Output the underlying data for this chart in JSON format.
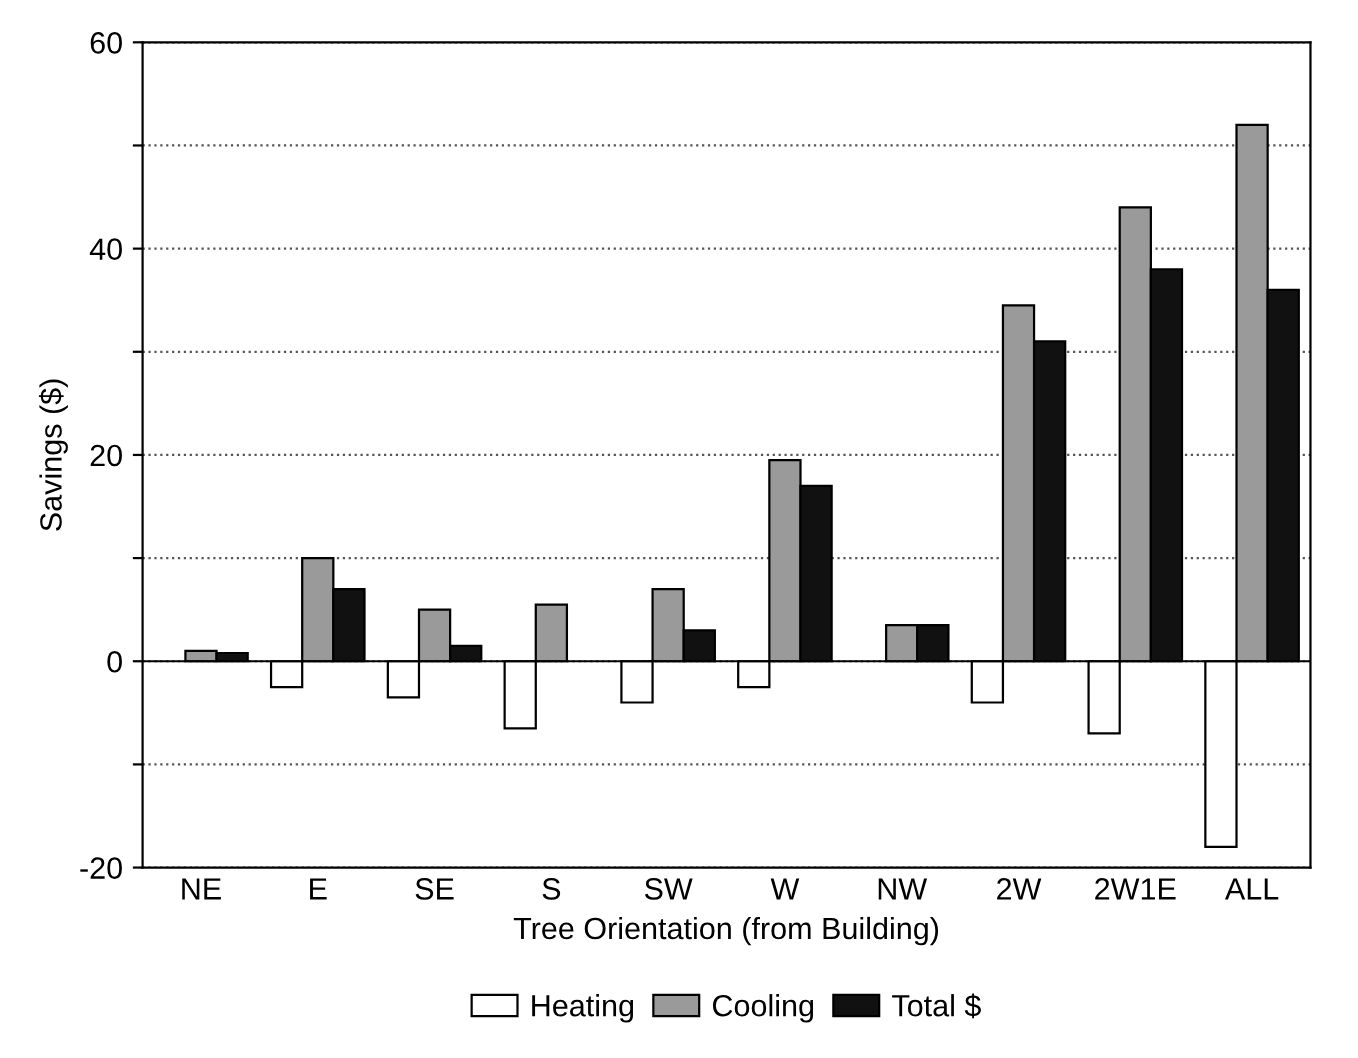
{
  "chart_data": {
    "type": "bar",
    "xlabel": "Tree Orientation (from Building)",
    "ylabel": "Savings ($)",
    "categories": [
      "NE",
      "E",
      "SE",
      "S",
      "SW",
      "W",
      "NW",
      "2W",
      "2W1E",
      "ALL"
    ],
    "series": [
      {
        "name": "Heating",
        "color": "#ffffff",
        "values": [
          null,
          -2.5,
          -3.5,
          -6.5,
          -4,
          -2.5,
          null,
          -4,
          -7,
          -18
        ]
      },
      {
        "name": "Cooling",
        "color": "#9a9a9a",
        "values": [
          1,
          10,
          5,
          5.5,
          7,
          19.5,
          3.5,
          34.5,
          44,
          52
        ]
      },
      {
        "name": "Total $",
        "color": "#111111",
        "values": [
          0.8,
          7,
          1.5,
          null,
          3,
          17,
          3.5,
          31,
          38,
          36
        ]
      }
    ],
    "ylim": [
      -20,
      60
    ],
    "yticks": [
      -20,
      {
        "value": -10,
        "label": null
      },
      0,
      {
        "value": 10,
        "label": null
      },
      20,
      {
        "value": 30,
        "label": null
      },
      40,
      {
        "value": 50,
        "label": null
      },
      60
    ],
    "grid": "y",
    "legend": "bottom"
  }
}
